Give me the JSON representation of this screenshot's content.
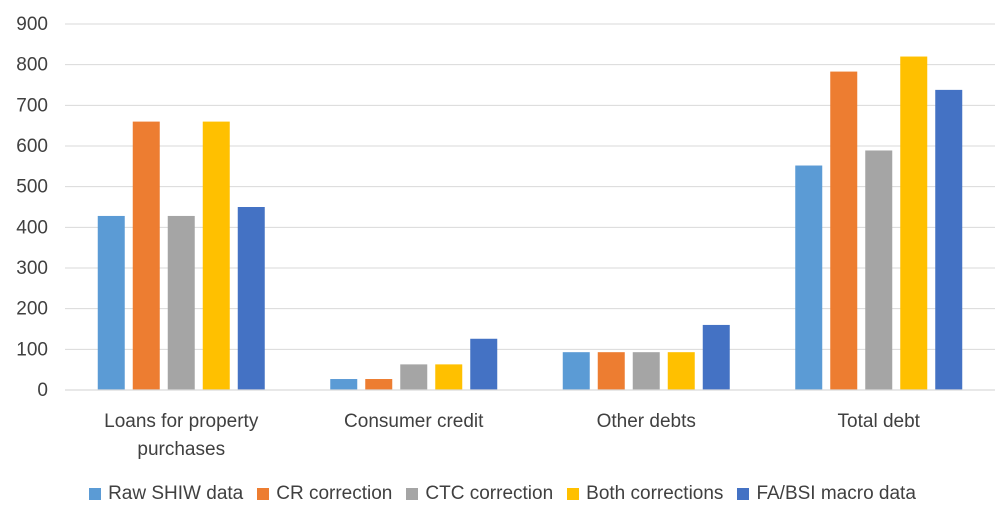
{
  "chart_data": {
    "type": "bar",
    "title": "",
    "xlabel": "",
    "ylabel": "",
    "ylim": [
      0,
      900
    ],
    "yticks": [
      0,
      100,
      200,
      300,
      400,
      500,
      600,
      700,
      800,
      900
    ],
    "grid": true,
    "legend_position": "bottom",
    "categories": [
      [
        "Loans for property",
        "purchases"
      ],
      [
        "Consumer credit"
      ],
      [
        "Other debts"
      ],
      [
        "Total debt"
      ]
    ],
    "series": [
      {
        "name": "Raw SHIW data",
        "color": "#5B9BD5",
        "values": [
          428,
          27,
          93,
          552
        ]
      },
      {
        "name": "CR correction",
        "color": "#ED7D31",
        "values": [
          660,
          27,
          93,
          783
        ]
      },
      {
        "name": "CTC correction",
        "color": "#A5A5A5",
        "values": [
          428,
          63,
          93,
          589
        ]
      },
      {
        "name": "Both corrections",
        "color": "#FFC000",
        "values": [
          660,
          63,
          93,
          820
        ]
      },
      {
        "name": "FA/BSI macro data",
        "color": "#4472C4",
        "values": [
          450,
          126,
          160,
          738
        ]
      }
    ]
  }
}
